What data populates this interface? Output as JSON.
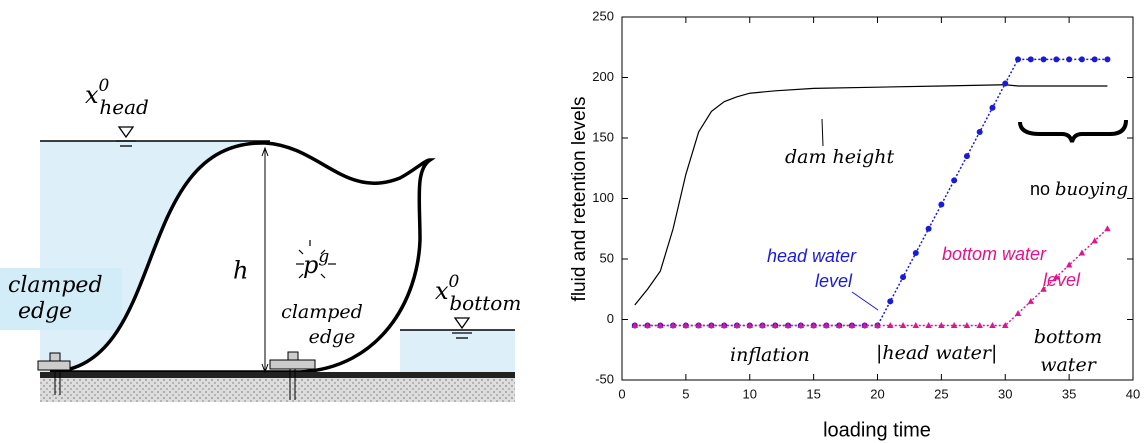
{
  "diagram": {
    "head_level": {
      "base": "x",
      "sup": "0",
      "sub": "head"
    },
    "bottom_level": {
      "base": "x",
      "sup": "0",
      "sub": "bottom"
    },
    "height": "h",
    "pressure": {
      "base": "p",
      "sup": "g"
    },
    "clamped_edge_left": [
      "clamped",
      "edge"
    ],
    "clamped_edge_right": [
      "clamped",
      "edge"
    ]
  },
  "chart_data": {
    "type": "line",
    "xlabel": "loading time",
    "ylabel": "fluid and retention levels",
    "xlim": [
      0,
      40
    ],
    "ylim": [
      -50,
      250
    ],
    "xticks": [
      0,
      5,
      10,
      15,
      20,
      25,
      30,
      35,
      40
    ],
    "yticks": [
      -50,
      0,
      50,
      100,
      150,
      200,
      250
    ],
    "series": [
      {
        "color": "#000000",
        "style": "solid",
        "marker": "none",
        "x": [
          1,
          2,
          3,
          4,
          5,
          6,
          7,
          8,
          9,
          10,
          12,
          15,
          20,
          25,
          30,
          31,
          35,
          38
        ],
        "values": [
          12,
          25,
          40,
          75,
          120,
          155,
          172,
          180,
          184,
          187,
          189,
          191,
          192,
          193,
          194,
          193,
          193,
          193
        ]
      },
      {
        "color": "#1a1adb",
        "style": "dotted",
        "marker": "circle",
        "x": [
          1,
          2,
          3,
          4,
          5,
          6,
          7,
          8,
          9,
          10,
          11,
          12,
          13,
          14,
          15,
          16,
          17,
          18,
          19,
          20,
          21,
          22,
          23,
          24,
          25,
          26,
          27,
          28,
          29,
          30,
          31,
          32,
          33,
          34,
          35,
          36,
          37,
          38
        ],
        "values": [
          -5,
          -5,
          -5,
          -5,
          -5,
          -5,
          -5,
          -5,
          -5,
          -5,
          -5,
          -5,
          -5,
          -5,
          -5,
          -5,
          -5,
          -5,
          -5,
          -5,
          15,
          35,
          55,
          75,
          95,
          115,
          135,
          155,
          175,
          195,
          215,
          215,
          215,
          215,
          215,
          215,
          215,
          215
        ]
      },
      {
        "color": "#e0148c",
        "style": "dotted",
        "marker": "triangle",
        "x": [
          1,
          2,
          3,
          4,
          5,
          6,
          7,
          8,
          9,
          10,
          11,
          12,
          13,
          14,
          15,
          16,
          17,
          18,
          19,
          20,
          21,
          22,
          23,
          24,
          25,
          26,
          27,
          28,
          29,
          30,
          31,
          32,
          33,
          34,
          35,
          36,
          37,
          38
        ],
        "values": [
          -5,
          -5,
          -5,
          -5,
          -5,
          -5,
          -5,
          -5,
          -5,
          -5,
          -5,
          -5,
          -5,
          -5,
          -5,
          -5,
          -5,
          -5,
          -5,
          -5,
          -5,
          -5,
          -5,
          -5,
          -5,
          -5,
          -5,
          -5,
          -5,
          -5,
          5,
          15,
          25,
          35,
          45,
          55,
          65,
          75
        ]
      }
    ],
    "annotations": {
      "dam_height": "dam height",
      "no_buoying": [
        "no",
        "buoying"
      ],
      "head_water_level": [
        "head water",
        "level"
      ],
      "bottom_water_level": [
        "bottom water",
        "level"
      ],
      "inflation": "inflation",
      "head_water": "|head water|",
      "bottom_water": [
        "bottom",
        "water"
      ]
    }
  }
}
